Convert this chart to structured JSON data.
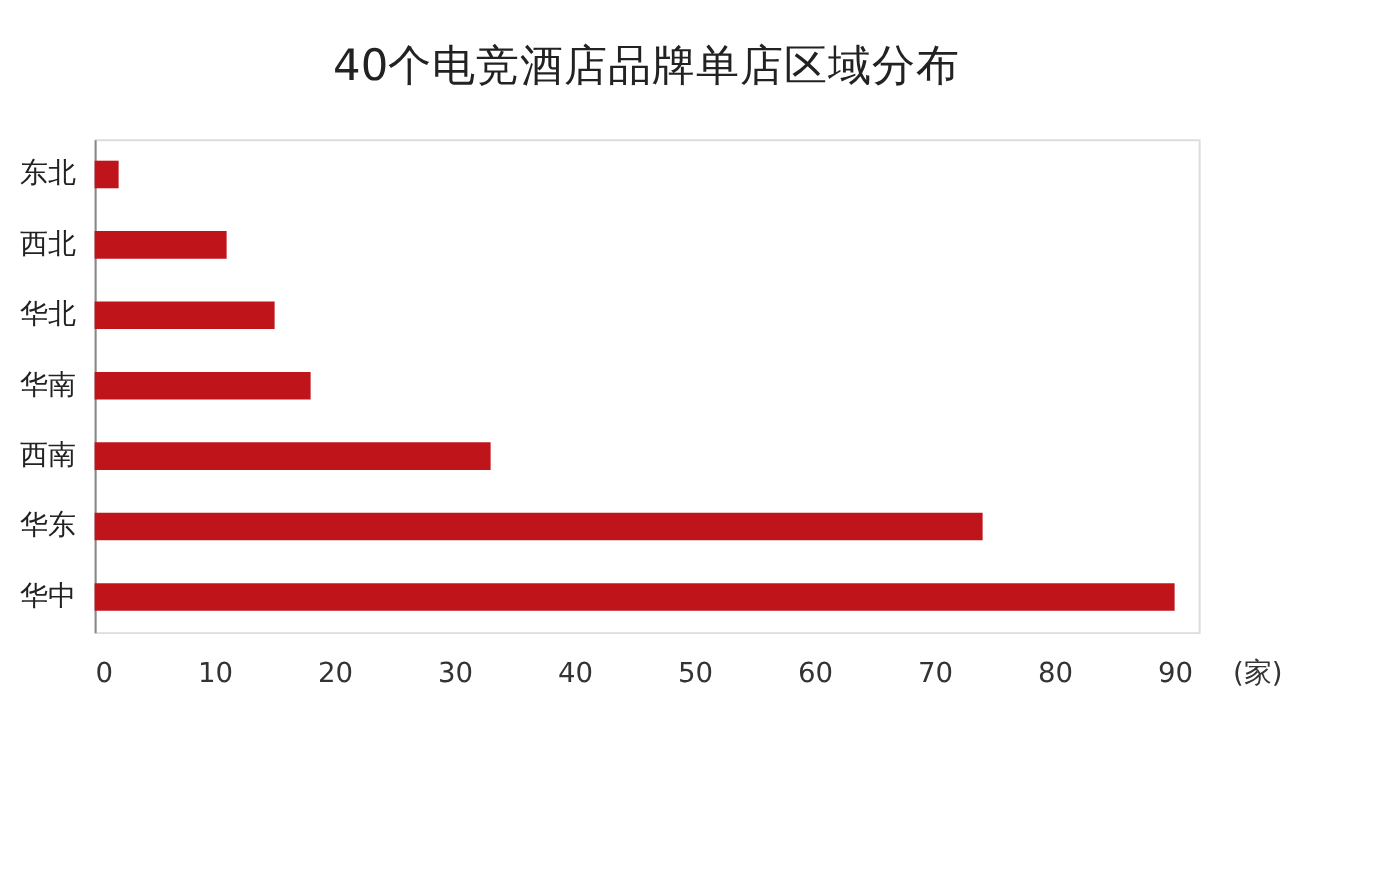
{
  "chart_data": {
    "type": "bar",
    "orientation": "horizontal",
    "title": "40个电竞酒店品牌单店区域分布",
    "categories": [
      "东北",
      "西北",
      "华北",
      "华南",
      "西南",
      "华东",
      "华中"
    ],
    "values": [
      2,
      11,
      15,
      18,
      33,
      74,
      90
    ],
    "color": "#c0141b",
    "xlim": [
      0,
      92
    ],
    "xticks": [
      0,
      10,
      20,
      30,
      40,
      50,
      60,
      70,
      80,
      90
    ],
    "xlabel": "(家)",
    "grid": false
  }
}
